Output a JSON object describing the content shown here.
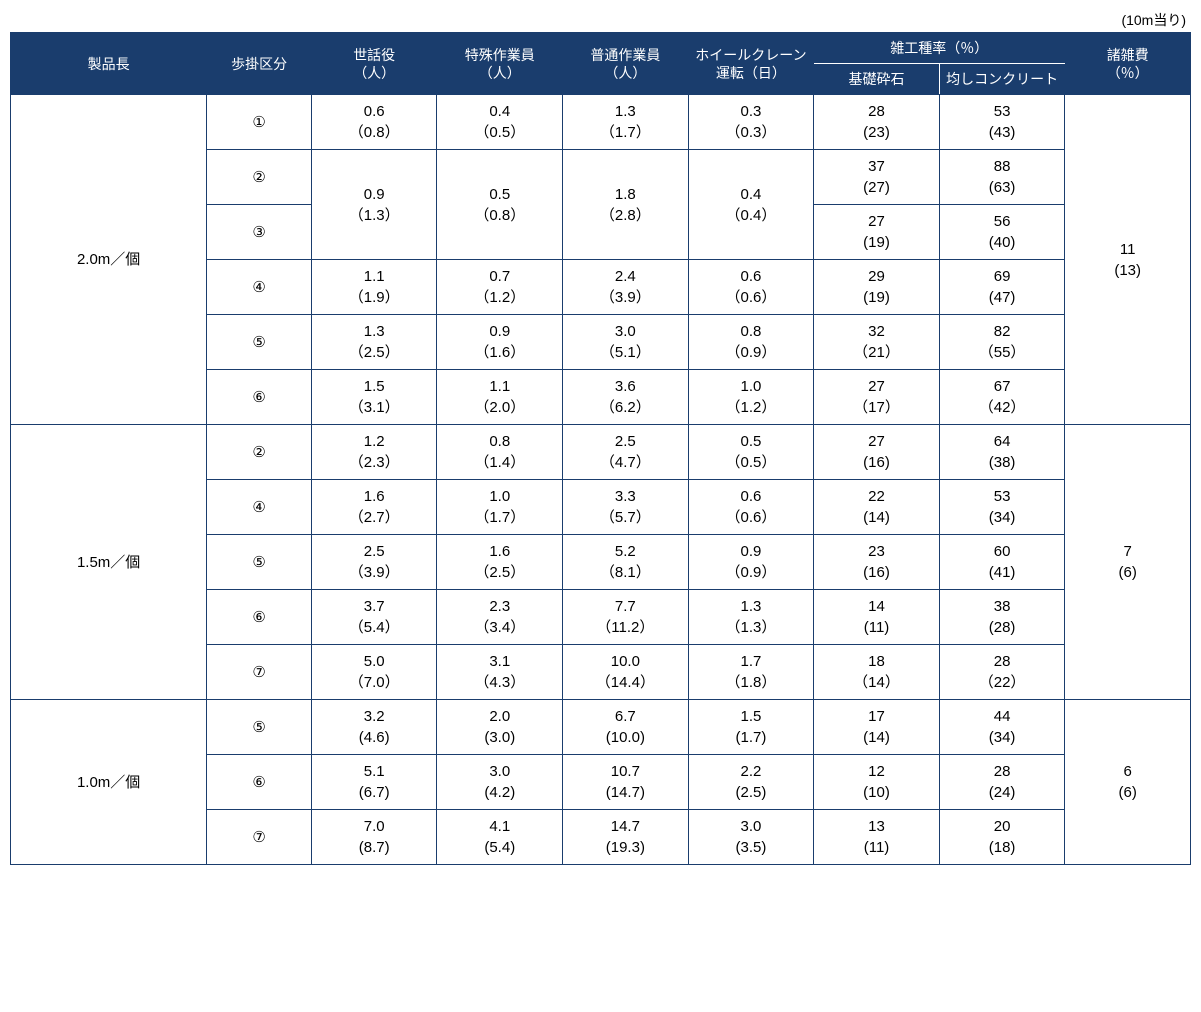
{
  "unit_label": "(10m当り)",
  "headers": {
    "product_length": "製品長",
    "category": "歩掛区分",
    "supervisor": "世話役\n（人）",
    "special_worker": "特殊作業員\n（人）",
    "general_worker": "普通作業員\n（人）",
    "crane": "ホイールクレーン\n運転（日）",
    "misc_rate": "雑工種率（％）",
    "misc_sub1": "基礎砕石",
    "misc_sub2": "均しコンクリート",
    "misc_cost": "諸雑費\n（％）"
  },
  "groups": [
    {
      "product_length": "2.0m／個",
      "misc_cost": "11\n(13)",
      "rows": [
        {
          "category": "①",
          "supervisor": "0.6\n（0.8）",
          "special": "0.4\n（0.5）",
          "general": "1.3\n（1.7）",
          "crane": "0.3\n（0.3）",
          "m1": "28\n(23)",
          "m2": "53\n(43)"
        },
        {
          "category": "②",
          "supervisor_merge": true,
          "m1": "37\n(27)",
          "m2": "88\n(63)"
        },
        {
          "category": "③",
          "supervisor": "0.9\n（1.3）",
          "special": "0.5\n（0.8）",
          "general": "1.8\n（2.8）",
          "crane": "0.4\n（0.4）",
          "m1": "27\n(19)",
          "m2": "56\n(40)"
        },
        {
          "category": "④",
          "supervisor": "1.1\n（1.9）",
          "special": "0.7\n（1.2）",
          "general": "2.4\n（3.9）",
          "crane": "0.6\n（0.6）",
          "m1": "29\n(19)",
          "m2": "69\n(47)"
        },
        {
          "category": "⑤",
          "supervisor": "1.3\n（2.5）",
          "special": "0.9\n（1.6）",
          "general": "3.0\n（5.1）",
          "crane": "0.8\n（0.9）",
          "m1": "32\n（21）",
          "m2": "82\n（55）"
        },
        {
          "category": "⑥",
          "supervisor": "1.5\n（3.1）",
          "special": "1.1\n（2.0）",
          "general": "3.6\n（6.2）",
          "crane": "1.0\n（1.2）",
          "m1": "27\n（17）",
          "m2": "67\n（42）"
        }
      ]
    },
    {
      "product_length": "1.5m／個",
      "misc_cost": "7\n(6)",
      "rows": [
        {
          "category": "②",
          "supervisor": "1.2\n（2.3）",
          "special": "0.8\n（1.4）",
          "general": "2.5\n（4.7）",
          "crane": "0.5\n（0.5）",
          "m1": "27\n(16)",
          "m2": "64\n(38)"
        },
        {
          "category": "④",
          "supervisor": "1.6\n（2.7）",
          "special": "1.0\n（1.7）",
          "general": "3.3\n（5.7）",
          "crane": "0.6\n（0.6）",
          "m1": "22\n(14)",
          "m2": "53\n(34)"
        },
        {
          "category": "⑤",
          "supervisor": "2.5\n（3.9）",
          "special": "1.6\n（2.5）",
          "general": "5.2\n（8.1）",
          "crane": "0.9\n（0.9）",
          "m1": "23\n(16)",
          "m2": "60\n(41)"
        },
        {
          "category": "⑥",
          "supervisor": "3.7\n（5.4）",
          "special": "2.3\n（3.4）",
          "general": "7.7\n（11.2）",
          "crane": "1.3\n（1.3）",
          "m1": "14\n(11)",
          "m2": "38\n(28)"
        },
        {
          "category": "⑦",
          "supervisor": "5.0\n（7.0）",
          "special": "3.1\n（4.3）",
          "general": "10.0\n（14.4）",
          "crane": "1.7\n（1.8）",
          "m1": "18\n（14）",
          "m2": "28\n（22）"
        }
      ]
    },
    {
      "product_length": "1.0m／個",
      "misc_cost": "6\n(6)",
      "rows": [
        {
          "category": "⑤",
          "supervisor": "3.2\n(4.6)",
          "special": "2.0\n(3.0)",
          "general": "6.7\n(10.0)",
          "crane": "1.5\n(1.7)",
          "m1": "17\n(14)",
          "m2": "44\n(34)"
        },
        {
          "category": "⑥",
          "supervisor": "5.1\n(6.7)",
          "special": "3.0\n(4.2)",
          "general": "10.7\n(14.7)",
          "crane": "2.2\n(2.5)",
          "m1": "12\n(10)",
          "m2": "28\n(24)"
        },
        {
          "category": "⑦",
          "supervisor": "7.0\n(8.7)",
          "special": "4.1\n(5.4)",
          "general": "14.7\n(19.3)",
          "crane": "3.0\n(3.5)",
          "m1": "13\n(11)",
          "m2": "20\n(18)"
        }
      ]
    }
  ]
}
